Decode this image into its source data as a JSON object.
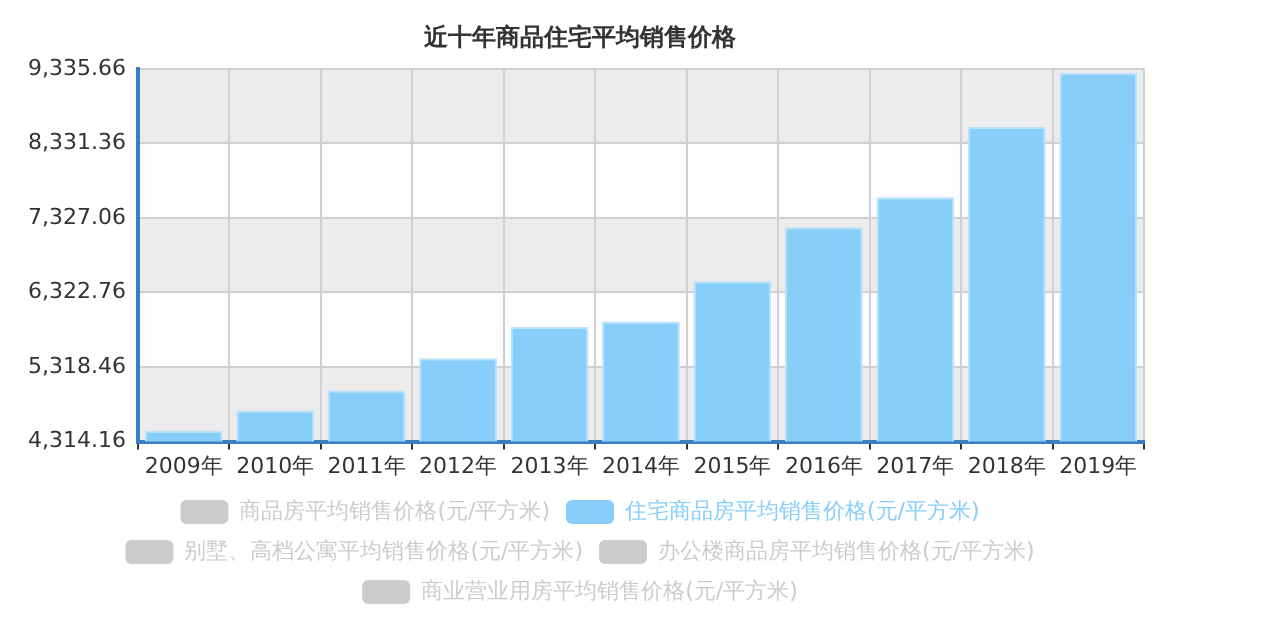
{
  "chart_data": {
    "type": "bar",
    "title": "近十年商品住宅平均销售价格",
    "categories": [
      "2009年",
      "2010年",
      "2011年",
      "2012年",
      "2013年",
      "2014年",
      "2015年",
      "2016年",
      "2017年",
      "2018年",
      "2019年"
    ],
    "series": [
      {
        "name": "商品房平均销售价格(元/平方米)",
        "color": "#cccccc",
        "values": [
          null,
          null,
          null,
          null,
          null,
          null,
          null,
          null,
          null,
          null,
          null
        ]
      },
      {
        "name": "住宅商品房平均销售价格(元/平方米)",
        "color": "#87cefa",
        "values": [
          4460,
          4734,
          5001,
          5437,
          5859,
          5932,
          6473,
          7201,
          7606,
          8552,
          9280
        ]
      },
      {
        "name": "别墅、高档公寓平均销售价格(元/平方米)",
        "color": "#cccccc",
        "values": [
          null,
          null,
          null,
          null,
          null,
          null,
          null,
          null,
          null,
          null,
          null
        ]
      },
      {
        "name": "办公楼商品房平均销售价格(元/平方米)",
        "color": "#cccccc",
        "values": [
          null,
          null,
          null,
          null,
          null,
          null,
          null,
          null,
          null,
          null,
          null
        ]
      },
      {
        "name": "商业营业用房平均销售价格(元/平方米)",
        "color": "#cccccc",
        "values": [
          null,
          null,
          null,
          null,
          null,
          null,
          null,
          null,
          null,
          null,
          null
        ]
      }
    ],
    "ylim": [
      4314.16,
      9335.66
    ],
    "yticks": [
      {
        "value": 4314.16,
        "label": "4,314.16"
      },
      {
        "value": 5318.46,
        "label": "5,318.46"
      },
      {
        "value": 6322.76,
        "label": "6,322.76"
      },
      {
        "value": 7327.06,
        "label": "7,327.06"
      },
      {
        "value": 8331.36,
        "label": "8,331.36"
      },
      {
        "value": 9335.66,
        "label": "9,335.66"
      }
    ],
    "grid": true,
    "legend": "bottom"
  }
}
